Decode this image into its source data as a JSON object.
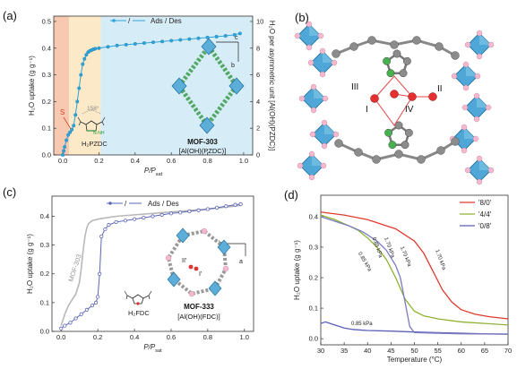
{
  "panels": {
    "a": "(a)",
    "b": "(b)",
    "c": "(c)",
    "d": "(d)"
  },
  "chart_data": [
    {
      "panel": "a",
      "type": "scatter",
      "xlabel_main": "P/P",
      "xlabel_sub": "sat",
      "ylabel_left": "H₂O uptake (g g⁻¹)",
      "ylabel_right": "H₂O per asymmetric unit [Al(OH)(PZDC)]",
      "xticks": [
        "0.0",
        "0.2",
        "0.4",
        "0.6",
        "0.8",
        "1.0"
      ],
      "yticks": [
        "0.0",
        "0.1",
        "0.2",
        "0.3",
        "0.4",
        "0.5"
      ],
      "yticks_right": [
        "0",
        "2",
        "4",
        "6",
        "8",
        "10"
      ],
      "xlim": [
        -0.05,
        1.05
      ],
      "ylim": [
        0,
        0.52
      ],
      "legend": {
        "dash": "/",
        "label": "Ads / Des"
      },
      "shading": [
        {
          "from": -0.05,
          "to": 0.035,
          "color": "#f7c9b0"
        },
        {
          "from": 0.035,
          "to": 0.21,
          "color": "#fbe9c7"
        },
        {
          "from": 0.21,
          "to": 1.05,
          "color": "#d6ecf7"
        }
      ],
      "series": [
        {
          "color": "#2fa4d8",
          "x": [
            0.0,
            0.005,
            0.01,
            0.02,
            0.03,
            0.04,
            0.05,
            0.06,
            0.07,
            0.08,
            0.09,
            0.1,
            0.11,
            0.12,
            0.13,
            0.14,
            0.15,
            0.16,
            0.17,
            0.18,
            0.2,
            0.25,
            0.3,
            0.35,
            0.4,
            0.45,
            0.5,
            0.55,
            0.6,
            0.65,
            0.7,
            0.75,
            0.8,
            0.85,
            0.9,
            0.95,
            0.98
          ],
          "y": [
            0.0,
            0.015,
            0.03,
            0.055,
            0.075,
            0.085,
            0.095,
            0.11,
            0.15,
            0.2,
            0.25,
            0.3,
            0.34,
            0.36,
            0.375,
            0.385,
            0.39,
            0.393,
            0.396,
            0.398,
            0.4,
            0.405,
            0.41,
            0.413,
            0.416,
            0.419,
            0.422,
            0.425,
            0.428,
            0.431,
            0.434,
            0.437,
            0.44,
            0.443,
            0.446,
            0.45,
            0.455
          ]
        }
      ],
      "annotations": {
        "s_label": "S",
        "angle": "158°",
        "linker": "H₂PZDC",
        "mof_name": "MOF-303",
        "formula": "[Al(OH)(PZDC)]",
        "axis_b": "b",
        "axis_c": "c"
      }
    },
    {
      "panel": "c",
      "type": "line",
      "xlabel_main": "P/P",
      "xlabel_sub": "sat",
      "ylabel_left": "H₂O uptake (g g⁻¹)",
      "xticks": [
        "0.0",
        "0.2",
        "0.4",
        "0.6",
        "0.8",
        "1.0"
      ],
      "yticks": [
        "0.0",
        "0.1",
        "0.2",
        "0.3",
        "0.4"
      ],
      "xlim": [
        -0.05,
        1.05
      ],
      "ylim": [
        0,
        0.47
      ],
      "legend": {
        "dash": "/",
        "label": "Ads / Des"
      },
      "series": [
        {
          "color": "#5b64b8",
          "x": [
            0.0,
            0.02,
            0.05,
            0.08,
            0.11,
            0.14,
            0.17,
            0.19,
            0.2,
            0.21,
            0.22,
            0.24,
            0.26,
            0.3,
            0.35,
            0.4,
            0.45,
            0.5,
            0.55,
            0.6,
            0.65,
            0.7,
            0.75,
            0.8,
            0.85,
            0.9,
            0.95,
            0.98
          ],
          "y": [
            0.01,
            0.02,
            0.03,
            0.045,
            0.06,
            0.075,
            0.09,
            0.1,
            0.12,
            0.2,
            0.33,
            0.355,
            0.37,
            0.38,
            0.385,
            0.39,
            0.395,
            0.4,
            0.405,
            0.41,
            0.413,
            0.417,
            0.421,
            0.425,
            0.43,
            0.435,
            0.44,
            0.442
          ]
        },
        {
          "color": "#b8b8b8",
          "x": [
            0.0,
            0.02,
            0.04,
            0.06,
            0.08,
            0.1,
            0.11,
            0.12,
            0.13,
            0.14,
            0.15,
            0.17,
            0.2,
            0.25,
            0.3,
            0.4,
            0.5,
            0.6,
            0.7,
            0.8,
            0.9,
            0.98
          ],
          "y": [
            0.02,
            0.06,
            0.09,
            0.11,
            0.13,
            0.17,
            0.22,
            0.28,
            0.33,
            0.36,
            0.375,
            0.385,
            0.39,
            0.395,
            0.4,
            0.405,
            0.41,
            0.415,
            0.42,
            0.425,
            0.432,
            0.438
          ]
        }
      ],
      "annotations": {
        "mof303_label": "MOF-303",
        "linker": "H₂FDC",
        "mof_name": "MOF-333",
        "formula": "[Al(OH)(FDC)]",
        "axis_b": "b",
        "axis_a": "a",
        "site1": "I'",
        "site2": "II'"
      }
    },
    {
      "panel": "d",
      "type": "line",
      "xlabel": "Temperature (°C)",
      "ylabel": "H₂O uptake (g g⁻¹)",
      "xticks": [
        "30",
        "35",
        "40",
        "45",
        "50",
        "55",
        "60",
        "65",
        "70"
      ],
      "yticks": [
        "0.0",
        "0.1",
        "0.2",
        "0.3",
        "0.4"
      ],
      "xlim": [
        30,
        70
      ],
      "ylim": [
        -0.02,
        0.47
      ],
      "series": [
        {
          "name": "'8/0'",
          "color": "#e03a2f",
          "x": [
            30,
            35,
            40,
            42,
            44,
            46,
            48,
            50,
            52,
            54,
            56,
            58,
            60,
            63,
            66,
            70
          ],
          "y": [
            0.415,
            0.405,
            0.39,
            0.38,
            0.37,
            0.36,
            0.34,
            0.32,
            0.28,
            0.22,
            0.16,
            0.12,
            0.095,
            0.08,
            0.072,
            0.065
          ]
        },
        {
          "name": "'4/4'",
          "color": "#8fb234",
          "x": [
            30,
            33,
            36,
            38,
            40,
            42,
            44,
            46,
            48,
            50,
            52,
            55,
            60,
            65,
            70
          ],
          "y": [
            0.405,
            0.39,
            0.37,
            0.355,
            0.33,
            0.3,
            0.26,
            0.2,
            0.13,
            0.09,
            0.075,
            0.065,
            0.055,
            0.05,
            0.045
          ]
        },
        {
          "name": "'0/8'",
          "color": "#5b5fb5",
          "x": [
            30,
            31,
            32,
            33,
            34,
            35,
            37,
            40,
            45,
            50,
            55,
            60,
            65,
            70
          ],
          "y": [
            0.05,
            0.055,
            0.05,
            0.045,
            0.04,
            0.035,
            0.03,
            0.027,
            0.025,
            0.022,
            0.02,
            0.018,
            0.016,
            0.015
          ]
        },
        {
          "color": "#7a7ac0",
          "x": [
            30,
            33,
            36,
            39,
            42,
            44,
            46,
            47,
            48,
            49,
            50,
            55,
            60,
            70
          ],
          "y": [
            0.4,
            0.385,
            0.37,
            0.35,
            0.32,
            0.29,
            0.24,
            0.2,
            0.12,
            0.04,
            0.02,
            0.018,
            0.016,
            0.015
          ]
        }
      ],
      "kpa_labels": [
        "0.85 kPa",
        "1.70 kPa",
        "1.70 kPa",
        "0.85 kPa",
        "1.70 kPa",
        "0.85 kPa"
      ]
    }
  ]
}
